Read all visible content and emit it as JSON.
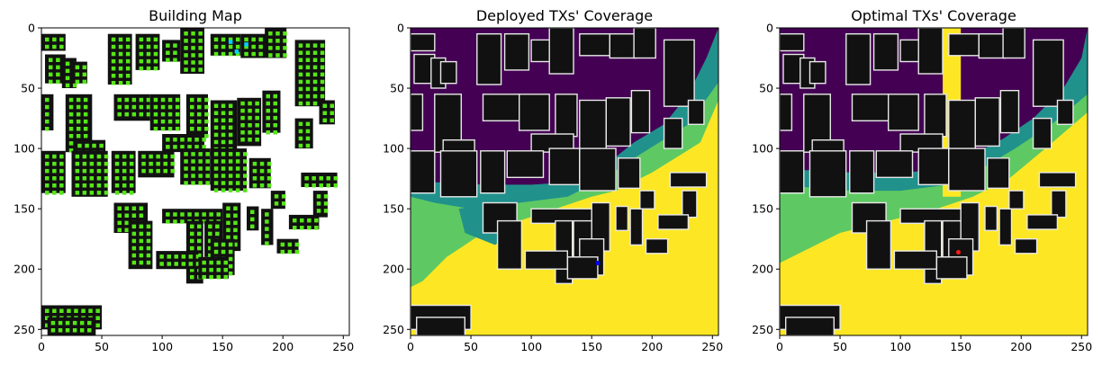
{
  "chart_data": [
    {
      "type": "heatmap",
      "title": "Building Map",
      "xlabel": "",
      "ylabel": "",
      "xlim": [
        0,
        255
      ],
      "ylim": [
        255,
        0
      ],
      "xticks": [
        0,
        50,
        100,
        150,
        200,
        250
      ],
      "yticks": [
        0,
        50,
        100,
        150,
        200,
        250
      ],
      "grid": false
    },
    {
      "type": "heatmap",
      "title": "Deployed TXs' Coverage",
      "xlabel": "",
      "ylabel": "",
      "xlim": [
        0,
        255
      ],
      "ylim": [
        255,
        0
      ],
      "xticks": [
        0,
        50,
        100,
        150,
        200,
        250
      ],
      "yticks": [
        0,
        50,
        100,
        150,
        200,
        250
      ],
      "grid": false
    },
    {
      "type": "heatmap",
      "title": "Optimal TXs' Coverage",
      "xlabel": "",
      "ylabel": "",
      "xlim": [
        0,
        255
      ],
      "ylim": [
        255,
        0
      ],
      "xticks": [
        0,
        50,
        100,
        150,
        200,
        250
      ],
      "yticks": [
        0,
        50,
        100,
        150,
        200,
        250
      ],
      "grid": false
    }
  ],
  "colors": {
    "building": "#111111",
    "candidate_site": "#55e617",
    "deployed_tx": "#00d0ff",
    "optimal_tx": "#ff1a1a",
    "coverage_none": "#440154",
    "coverage_low": "#21918c",
    "coverage_mid": "#5ec962",
    "coverage_high": "#fde725"
  }
}
